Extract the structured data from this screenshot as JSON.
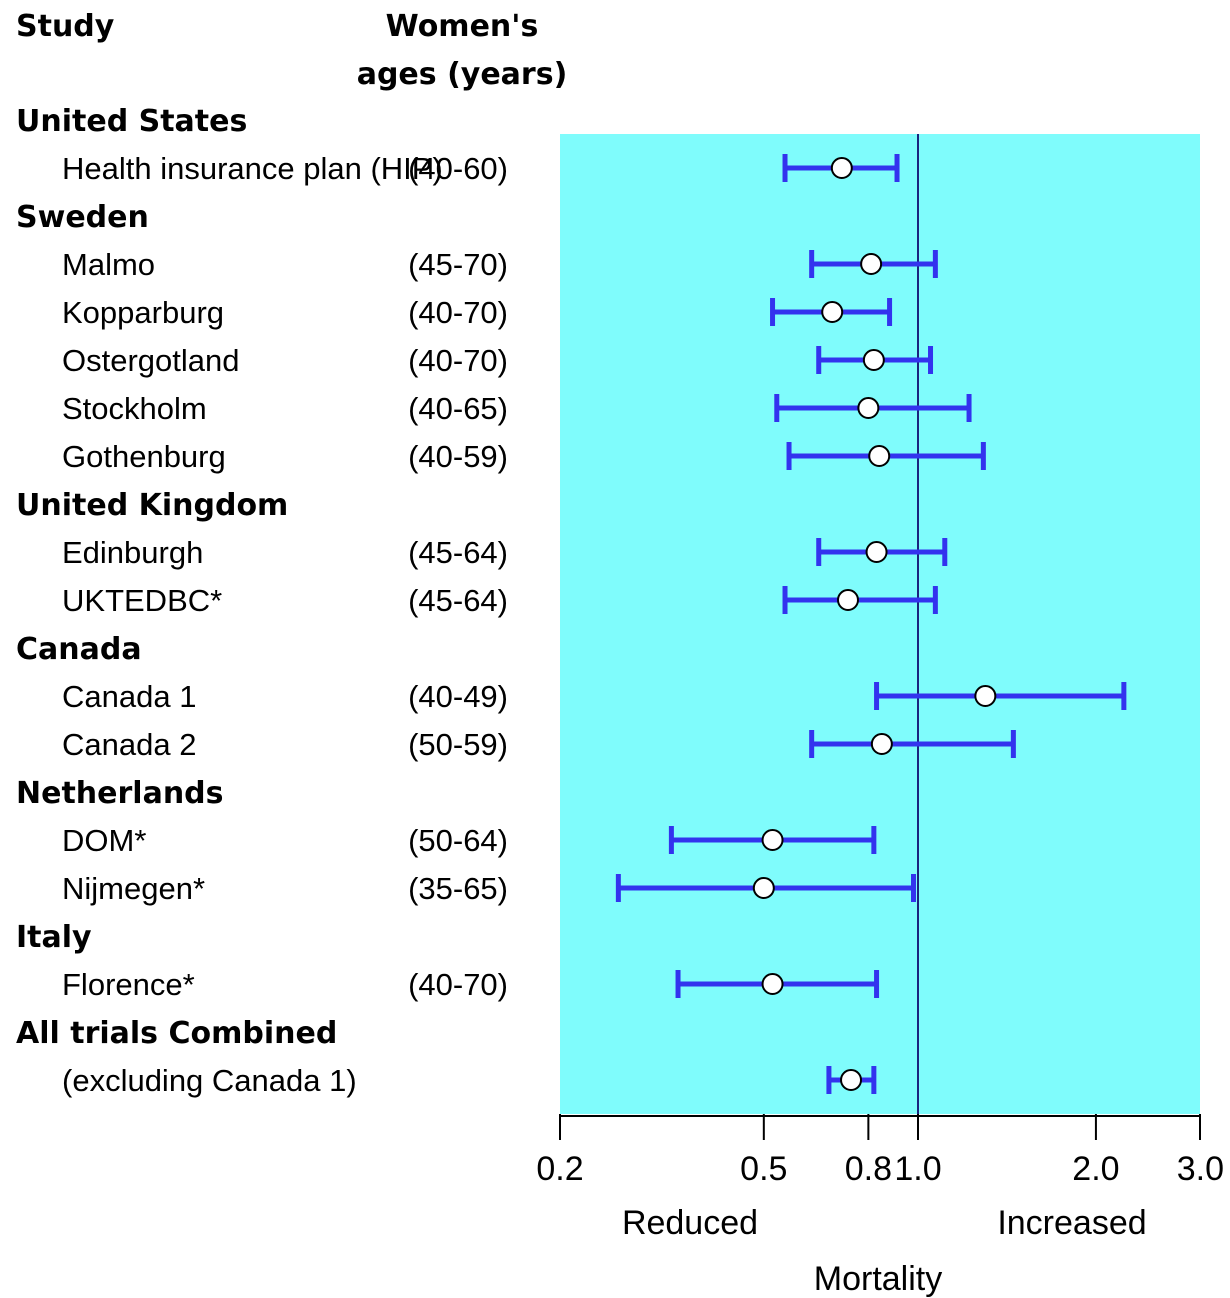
{
  "header": {
    "study_label": "Study",
    "ages_label_line1": "Women's",
    "ages_label_line2": "ages (years)"
  },
  "chart_data": {
    "type": "forest",
    "x_scale": "log",
    "xlim": [
      0.2,
      3.0
    ],
    "reference_line": 1.0,
    "x_ticks": [
      "0.2",
      "0.5",
      "0.8",
      "1.0",
      "2.0",
      "3.0"
    ],
    "x_tick_values": [
      0.2,
      0.5,
      0.8,
      1.0,
      2.0,
      3.0
    ],
    "xlabel": "Mortality",
    "left_direction_label": "Reduced",
    "right_direction_label": "Increased",
    "colors": {
      "panel": "#7ffcfc",
      "interval": "#3333ee",
      "marker_fill": "#ffffff",
      "reference": "#1a237e"
    },
    "groups": [
      {
        "name": "United States",
        "studies": [
          {
            "label": "Health insurance plan (HIP)",
            "ages": "(40-60)",
            "estimate": 0.71,
            "ci": [
              0.55,
              0.91
            ]
          }
        ]
      },
      {
        "name": "Sweden",
        "studies": [
          {
            "label": "Malmo",
            "ages": "(45-70)",
            "estimate": 0.81,
            "ci": [
              0.62,
              1.07
            ]
          },
          {
            "label": "Kopparburg",
            "ages": "(40-70)",
            "estimate": 0.68,
            "ci": [
              0.52,
              0.88
            ]
          },
          {
            "label": "Ostergotland",
            "ages": "(40-70)",
            "estimate": 0.82,
            "ci": [
              0.64,
              1.05
            ]
          },
          {
            "label": "Stockholm",
            "ages": "(40-65)",
            "estimate": 0.8,
            "ci": [
              0.53,
              1.22
            ]
          },
          {
            "label": "Gothenburg",
            "ages": "(40-59)",
            "estimate": 0.84,
            "ci": [
              0.56,
              1.29
            ]
          }
        ]
      },
      {
        "name": "United Kingdom",
        "studies": [
          {
            "label": "Edinburgh",
            "ages": "(45-64)",
            "estimate": 0.83,
            "ci": [
              0.64,
              1.11
            ]
          },
          {
            "label": "UKTEDBC*",
            "ages": "(45-64)",
            "estimate": 0.73,
            "ci": [
              0.55,
              1.07
            ]
          }
        ]
      },
      {
        "name": "Canada",
        "studies": [
          {
            "label": "Canada 1",
            "ages": "(40-49)",
            "estimate": 1.3,
            "ci": [
              0.83,
              2.23
            ]
          },
          {
            "label": "Canada 2",
            "ages": "(50-59)",
            "estimate": 0.85,
            "ci": [
              0.62,
              1.45
            ]
          }
        ]
      },
      {
        "name": "Netherlands",
        "studies": [
          {
            "label": "DOM*",
            "ages": "(50-64)",
            "estimate": 0.52,
            "ci": [
              0.33,
              0.82
            ]
          },
          {
            "label": "Nijmegen*",
            "ages": "(35-65)",
            "estimate": 0.5,
            "ci": [
              0.26,
              0.98
            ]
          }
        ]
      },
      {
        "name": "Italy",
        "studies": [
          {
            "label": "Florence*",
            "ages": "(40-70)",
            "estimate": 0.52,
            "ci": [
              0.34,
              0.83
            ]
          }
        ]
      },
      {
        "name": "All trials Combined",
        "studies": [
          {
            "label": "(excluding Canada 1)",
            "ages": "",
            "estimate": 0.74,
            "ci": [
              0.67,
              0.82
            ]
          }
        ]
      }
    ]
  }
}
